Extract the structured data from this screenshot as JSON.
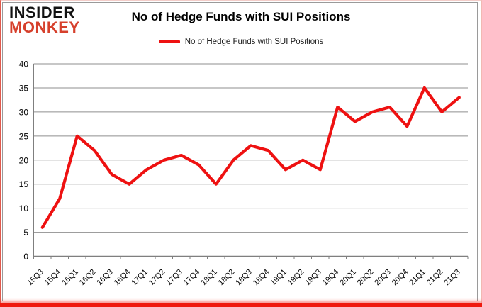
{
  "brand": {
    "line1": "INSIDER",
    "line2": "MONKEY"
  },
  "header": {
    "title": "No of Hedge Funds with SUI Positions"
  },
  "legend": {
    "label": "No of Hedge Funds with SUI Positions",
    "color": "#ee1111"
  },
  "colors": {
    "line": "#ee1111",
    "gridline": "#8f8f8f",
    "axis": "#7f7f7f",
    "frame_bottom": "#ef1a0f"
  },
  "chart_data": {
    "type": "line",
    "title": "No of Hedge Funds with SUI Positions",
    "xlabel": "",
    "ylabel": "",
    "categories": [
      "15Q3",
      "15Q4",
      "16Q1",
      "16Q2",
      "16Q3",
      "16Q4",
      "17Q1",
      "17Q2",
      "17Q3",
      "17Q4",
      "18Q1",
      "18Q2",
      "18Q3",
      "18Q4",
      "19Q1",
      "19Q2",
      "19Q3",
      "19Q4",
      "20Q1",
      "20Q2",
      "20Q3",
      "20Q4",
      "21Q1",
      "21Q2",
      "21Q3"
    ],
    "series": [
      {
        "name": "No of Hedge Funds with SUI Positions",
        "color": "#ee1111",
        "values": [
          6,
          12,
          25,
          22,
          17,
          15,
          18,
          20,
          21,
          19,
          15,
          20,
          23,
          22,
          18,
          20,
          18,
          31,
          28,
          30,
          31,
          27,
          35,
          30,
          33
        ]
      }
    ],
    "ylim": [
      0,
      40
    ],
    "ytick_step": 5,
    "ytick_labels": [
      "0",
      "5",
      "10",
      "15",
      "20",
      "25",
      "30",
      "35",
      "40"
    ],
    "grid": true,
    "legend_position": "top-center"
  }
}
